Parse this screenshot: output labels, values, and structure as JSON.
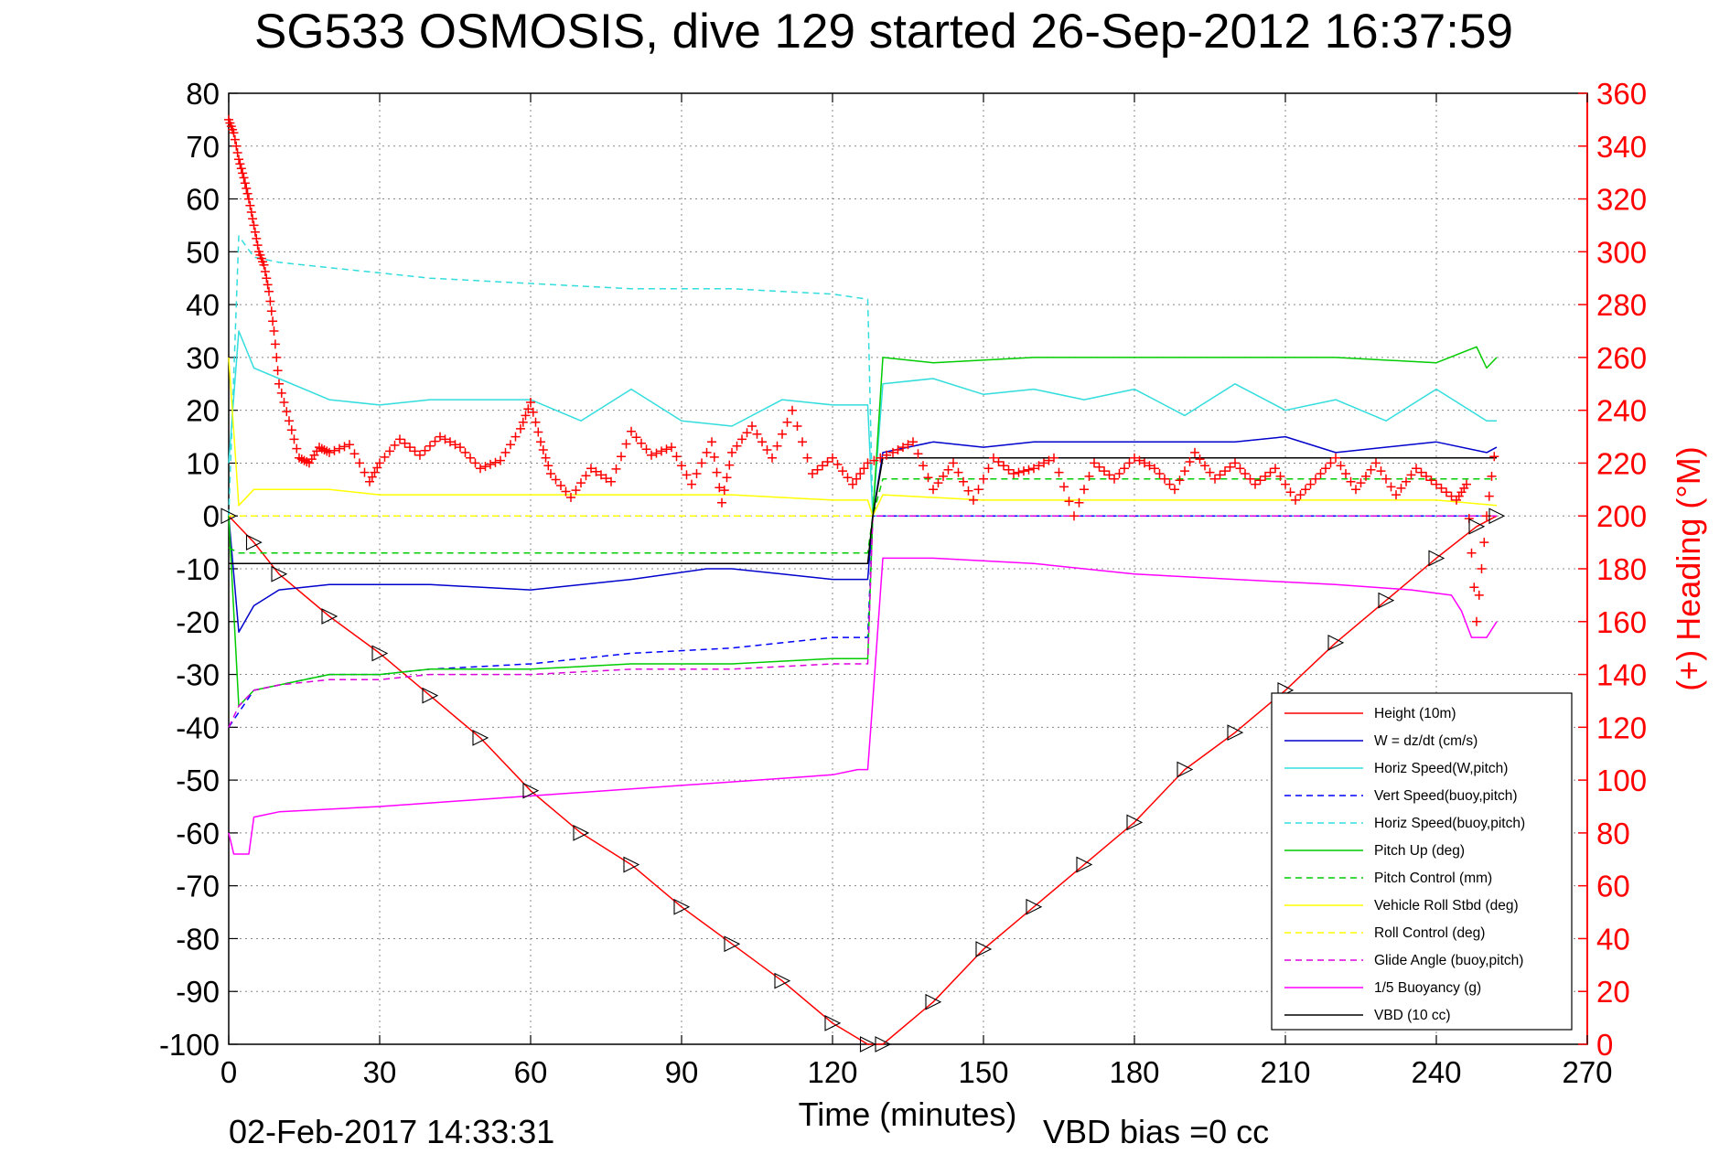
{
  "chart_data": {
    "type": "line",
    "title": "SG533 OSMOSIS, dive 129 started 26-Sep-2012 16:37:59",
    "xlabel": "Time (minutes)",
    "ylabel": "",
    "y2label": "(+) Heading (°M)",
    "xlim": [
      0,
      270
    ],
    "ylim": [
      -100,
      80
    ],
    "y2lim": [
      0,
      360
    ],
    "xticks": [
      "0",
      "30",
      "60",
      "90",
      "120",
      "150",
      "180",
      "210",
      "240",
      "270"
    ],
    "yticks": [
      "80",
      "70",
      "60",
      "50",
      "40",
      "30",
      "20",
      "10",
      "0",
      "-10",
      "-20",
      "-30",
      "-40",
      "-50",
      "-60",
      "-70",
      "-80",
      "-90",
      "-100"
    ],
    "y2ticks": [
      "360",
      "340",
      "320",
      "300",
      "280",
      "260",
      "240",
      "220",
      "200",
      "180",
      "160",
      "140",
      "120",
      "100",
      "80",
      "60",
      "40",
      "20",
      "0"
    ],
    "grid": true,
    "legend_position": "bottom-right",
    "footer_left": "02-Feb-2017 14:33:31",
    "footer_right": "VBD bias =0 cc",
    "series": [
      {
        "name": "Height (10m)",
        "color": "#ff0000",
        "style": "solid",
        "x": [
          0,
          5,
          10,
          20,
          30,
          40,
          50,
          60,
          70,
          80,
          90,
          100,
          110,
          120,
          127,
          130,
          140,
          150,
          160,
          170,
          180,
          190,
          200,
          210,
          220,
          230,
          240,
          248,
          252
        ],
        "y": [
          0,
          -5,
          -11,
          -19,
          -26,
          -34,
          -42,
          -52,
          -60,
          -66,
          -74,
          -81,
          -88,
          -96,
          -100,
          -100,
          -92,
          -82,
          -74,
          -66,
          -58,
          -48,
          -41,
          -33,
          -24,
          -16,
          -8,
          -2,
          0
        ]
      },
      {
        "name": "W = dz/dt (cm/s)",
        "color": "#0000cc",
        "style": "solid",
        "x": [
          0,
          2,
          5,
          10,
          20,
          30,
          40,
          60,
          80,
          95,
          100,
          110,
          120,
          127,
          128,
          130,
          140,
          150,
          160,
          180,
          200,
          210,
          220,
          240,
          250,
          252
        ],
        "y": [
          0,
          -22,
          -17,
          -14,
          -13,
          -13,
          -13,
          -14,
          -12,
          -10,
          -10,
          -11,
          -12,
          -12,
          0,
          12,
          14,
          13,
          14,
          14,
          14,
          15,
          12,
          14,
          12,
          13
        ]
      },
      {
        "name": "Horiz Speed(W,pitch)",
        "color": "#33dddd",
        "style": "solid",
        "x": [
          0,
          2,
          5,
          10,
          20,
          30,
          40,
          60,
          70,
          80,
          90,
          100,
          110,
          120,
          127,
          128,
          130,
          140,
          150,
          160,
          170,
          180,
          190,
          200,
          210,
          220,
          230,
          240,
          250,
          252
        ],
        "y": [
          10,
          35,
          28,
          26,
          22,
          21,
          22,
          22,
          18,
          24,
          18,
          17,
          22,
          21,
          21,
          0,
          25,
          26,
          23,
          24,
          22,
          24,
          19,
          25,
          20,
          22,
          18,
          24,
          18,
          18
        ]
      },
      {
        "name": "Vert Speed(buoy,pitch)",
        "color": "#0000ff",
        "style": "dashed",
        "x": [
          0,
          5,
          10,
          20,
          30,
          40,
          60,
          80,
          100,
          110,
          120,
          127,
          128,
          130,
          150,
          180,
          210,
          240,
          252
        ],
        "y": [
          -40,
          -33,
          -32,
          -30,
          -30,
          -29,
          -28,
          -26,
          -25,
          -24,
          -23,
          -23,
          0,
          0,
          0,
          0,
          0,
          0,
          0
        ]
      },
      {
        "name": "Horiz Speed(buoy,pitch)",
        "color": "#33dddd",
        "style": "dashed",
        "x": [
          0,
          2,
          5,
          10,
          20,
          30,
          40,
          60,
          80,
          100,
          120,
          127,
          128,
          130,
          150,
          180,
          210,
          240,
          252
        ],
        "y": [
          0,
          53,
          49,
          48,
          47,
          46,
          45,
          44,
          43,
          43,
          42,
          41,
          0,
          0,
          0,
          0,
          0,
          0,
          0
        ]
      },
      {
        "name": "Pitch Up (deg)",
        "color": "#00cc00",
        "style": "solid",
        "x": [
          0,
          2,
          5,
          10,
          20,
          30,
          40,
          60,
          80,
          100,
          120,
          127,
          128,
          130,
          140,
          160,
          180,
          200,
          220,
          240,
          248,
          250,
          252
        ],
        "y": [
          0,
          -36,
          -33,
          -32,
          -30,
          -30,
          -29,
          -29,
          -28,
          -28,
          -27,
          -27,
          0,
          30,
          29,
          30,
          30,
          30,
          30,
          29,
          32,
          28,
          30
        ]
      },
      {
        "name": "Pitch Control (mm)",
        "color": "#00cc00",
        "style": "dashed",
        "x": [
          0,
          2,
          5,
          10,
          40,
          80,
          120,
          127,
          128,
          130,
          160,
          200,
          240,
          252
        ],
        "y": [
          -6,
          -7,
          -7,
          -7,
          -7,
          -7,
          -7,
          -7,
          0,
          7,
          7,
          7,
          7,
          7
        ]
      },
      {
        "name": "Vehicle Roll Stbd (deg)",
        "color": "#ffff00",
        "style": "solid",
        "x": [
          0,
          2,
          5,
          10,
          20,
          30,
          40,
          60,
          80,
          100,
          120,
          127,
          128,
          130,
          150,
          180,
          210,
          240,
          252
        ],
        "y": [
          30,
          2,
          5,
          5,
          5,
          4,
          4,
          4,
          4,
          4,
          3,
          3,
          0,
          4,
          3,
          3,
          3,
          3,
          2
        ]
      },
      {
        "name": "Roll Control (deg)",
        "color": "#ffff00",
        "style": "dashed",
        "x": [
          0,
          127,
          128,
          252
        ],
        "y": [
          0,
          0,
          0,
          0
        ]
      },
      {
        "name": "Glide Angle (buoy,pitch)",
        "color": "#dd00dd",
        "style": "dashed",
        "x": [
          0,
          2,
          5,
          10,
          20,
          30,
          40,
          60,
          80,
          100,
          120,
          127,
          128,
          130,
          150,
          180,
          210,
          240,
          252
        ],
        "y": [
          -40,
          -36,
          -33,
          -32,
          -31,
          -31,
          -30,
          -30,
          -29,
          -29,
          -28,
          -28,
          0,
          0,
          0,
          0,
          0,
          0,
          0
        ]
      },
      {
        "name": "1/5 Buoyancy (g)",
        "color": "#ff00ff",
        "style": "solid",
        "x": [
          0,
          1,
          4,
          5,
          10,
          30,
          60,
          90,
          120,
          125,
          127,
          128,
          130,
          140,
          160,
          180,
          200,
          220,
          235,
          243,
          245,
          247,
          250,
          252
        ],
        "y": [
          -60,
          -64,
          -64,
          -57,
          -56,
          -55,
          -53,
          -51,
          -49,
          -48,
          -48,
          -35,
          -8,
          -8,
          -9,
          -11,
          -12,
          -13,
          -14,
          -15,
          -18,
          -23,
          -23,
          -20
        ]
      },
      {
        "name": "VBD (10 cc)",
        "color": "#000000",
        "style": "solid",
        "x": [
          0,
          2,
          5,
          127,
          128,
          130,
          252
        ],
        "y": [
          -9,
          -9,
          -9,
          -9,
          0,
          11,
          11
        ]
      }
    ],
    "heading_series": {
      "name": "(+) Heading (°M)",
      "color": "#ff0000",
      "marker": "+",
      "axis": "right",
      "x": [
        0,
        1,
        2,
        3,
        4,
        5,
        6,
        7,
        8,
        9,
        10,
        12,
        14,
        16,
        18,
        20,
        24,
        28,
        30,
        34,
        38,
        42,
        46,
        50,
        54,
        58,
        60,
        62,
        64,
        68,
        72,
        76,
        80,
        84,
        88,
        92,
        96,
        98,
        100,
        104,
        108,
        112,
        116,
        120,
        124,
        127,
        132,
        136,
        140,
        144,
        148,
        152,
        156,
        160,
        164,
        168,
        172,
        176,
        180,
        184,
        188,
        192,
        196,
        200,
        204,
        208,
        212,
        216,
        220,
        224,
        228,
        232,
        236,
        240,
        244,
        246,
        248,
        250,
        252
      ],
      "y": [
        350,
        345,
        335,
        328,
        320,
        310,
        300,
        295,
        285,
        270,
        250,
        236,
        222,
        220,
        226,
        224,
        227,
        213,
        220,
        229,
        223,
        230,
        226,
        218,
        221,
        233,
        243,
        228,
        216,
        207,
        218,
        213,
        232,
        223,
        226,
        212,
        228,
        205,
        224,
        234,
        222,
        240,
        216,
        222,
        212,
        220,
        224,
        228,
        210,
        220,
        206,
        222,
        216,
        218,
        222,
        200,
        220,
        214,
        222,
        218,
        210,
        224,
        214,
        220,
        212,
        218,
        206,
        214,
        222,
        210,
        220,
        208,
        218,
        212,
        206,
        212,
        160,
        200,
        230
      ]
    }
  }
}
